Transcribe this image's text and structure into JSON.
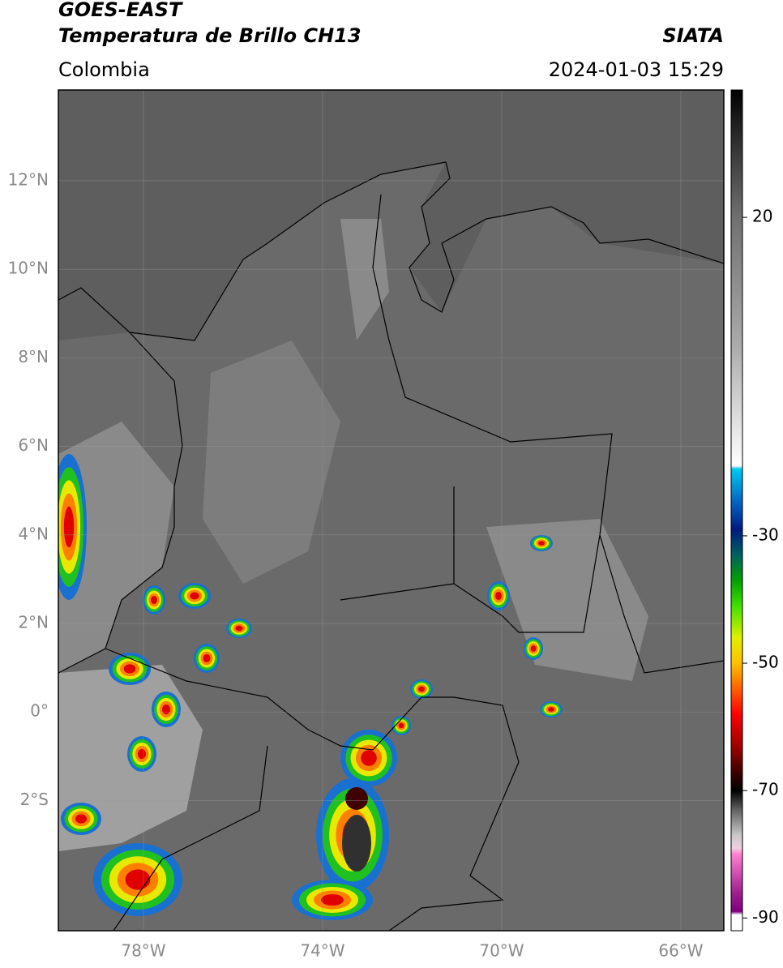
{
  "header": {
    "title": "GOES-EAST",
    "subtitle": "Temperatura de Brillo CH13",
    "source": "SIATA",
    "region": "Colombia",
    "timestamp": "2024-01-03 15:29"
  },
  "map": {
    "latlim": [
      -4.94,
      14.05
    ],
    "lonlim": [
      -79.9,
      -65.04
    ],
    "grid": true,
    "lat_ticks": [
      {
        "value": 12,
        "label": "12°N"
      },
      {
        "value": 10,
        "label": "10°N"
      },
      {
        "value": 8,
        "label": "8°N"
      },
      {
        "value": 6,
        "label": "6°N"
      },
      {
        "value": 4,
        "label": "4°N"
      },
      {
        "value": 2,
        "label": "2°N"
      },
      {
        "value": 0,
        "label": "0°"
      },
      {
        "value": -2,
        "label": "2°S"
      }
    ],
    "lon_ticks": [
      {
        "value": -78,
        "label": "78°W"
      },
      {
        "value": -74,
        "label": "74°W"
      },
      {
        "value": -70,
        "label": "70°W"
      },
      {
        "value": -66,
        "label": "66°W"
      }
    ]
  },
  "colorbar": {
    "lim": [
      -92,
      40
    ],
    "ticks": [
      20,
      -30,
      -50,
      -70,
      -90
    ],
    "stops": [
      [
        40,
        "#000000"
      ],
      [
        30,
        "#3a3a3a"
      ],
      [
        20,
        "#707070"
      ],
      [
        0,
        "#aaaaaa"
      ],
      [
        -19,
        "#ffffff"
      ],
      [
        -19.5,
        "#00c8f0"
      ],
      [
        -25,
        "#0060c0"
      ],
      [
        -29,
        "#001a80"
      ],
      [
        -33,
        "#006060"
      ],
      [
        -37,
        "#00a000"
      ],
      [
        -41,
        "#40e000"
      ],
      [
        -46,
        "#e0f000"
      ],
      [
        -50,
        "#ffc000"
      ],
      [
        -54,
        "#ff6000"
      ],
      [
        -58,
        "#ff0000"
      ],
      [
        -63,
        "#a00000"
      ],
      [
        -67,
        "#400000"
      ],
      [
        -70,
        "#000000"
      ],
      [
        -73,
        "#606060"
      ],
      [
        -77,
        "#c8c8c8"
      ],
      [
        -79,
        "#f0d0e0"
      ],
      [
        -80,
        "#ff80d0"
      ],
      [
        -86,
        "#a02090"
      ],
      [
        -89,
        "#800080"
      ],
      [
        -89.5,
        "#ffffff"
      ],
      [
        -92,
        "#ffffff"
      ]
    ]
  }
}
